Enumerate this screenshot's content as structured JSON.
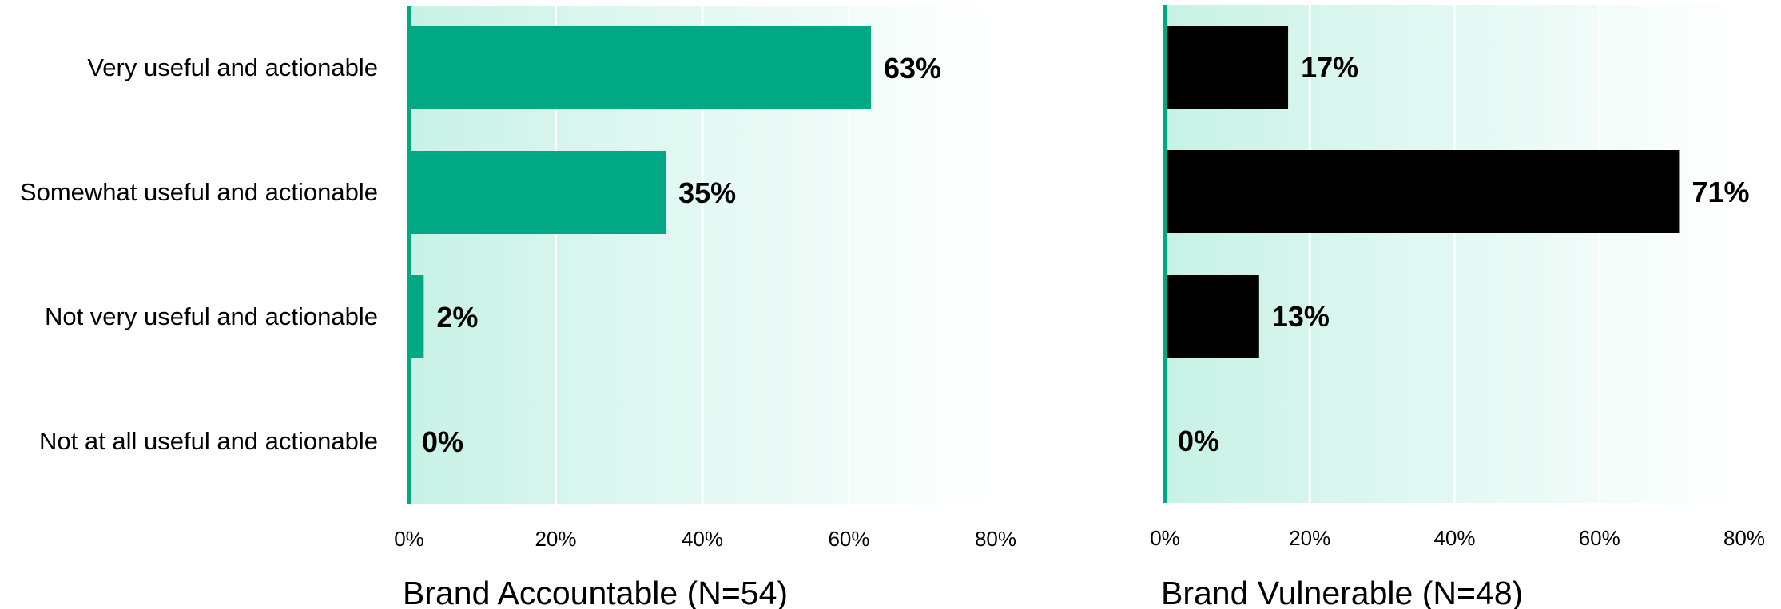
{
  "chart_data": [
    {
      "type": "bar",
      "orientation": "horizontal",
      "title": "Brand Accountable (N=54)",
      "categories": [
        "Very useful and actionable",
        "Somewhat useful and actionable",
        "Not very useful and actionable",
        "Not at all useful and actionable"
      ],
      "values": [
        63,
        35,
        2,
        0
      ],
      "value_labels": [
        "63%",
        "35%",
        "2%",
        "0%"
      ],
      "xlim": [
        0,
        80
      ],
      "xticks": [
        "0%",
        "20%",
        "40%",
        "60%",
        "80%"
      ],
      "bar_color": "#00a884",
      "grid": true
    },
    {
      "type": "bar",
      "orientation": "horizontal",
      "title": "Brand Vulnerable (N=48)",
      "categories": [
        "Very useful and actionable",
        "Somewhat useful and actionable",
        "Not very useful and actionable",
        "Not at all useful and actionable"
      ],
      "values": [
        17,
        71,
        13,
        0
      ],
      "value_labels": [
        "17%",
        "71%",
        "13%",
        "0%"
      ],
      "xlim": [
        0,
        80
      ],
      "xticks": [
        "0%",
        "20%",
        "40%",
        "60%",
        "80%"
      ],
      "bar_color": "#000000",
      "grid": true
    }
  ],
  "colors": {
    "axis_line": "#00a884",
    "background_start": "#c8f2e6",
    "background_end": "#ffffff",
    "gridline": "#ffffff"
  }
}
